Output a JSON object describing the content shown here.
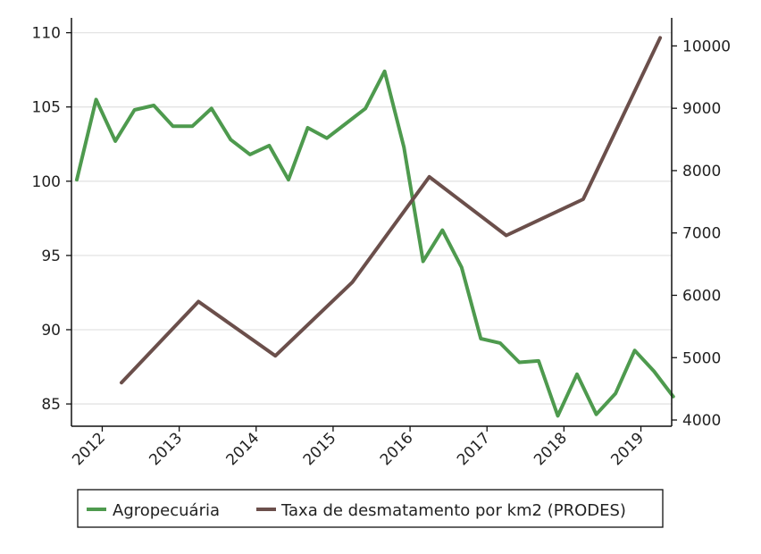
{
  "chart_data": {
    "type": "line",
    "title": "",
    "xlabel": "",
    "ylabel": "",
    "y2label": "",
    "grid": "horizontal",
    "legend_position": "bottom",
    "x_ticks": [
      "2012",
      "2013",
      "2014",
      "2015",
      "2016",
      "2017",
      "2018",
      "2019"
    ],
    "xlim": [
      2011.6,
      2019.4
    ],
    "ylim_left": [
      83.5,
      111
    ],
    "ylim_right": [
      3900,
      10450
    ],
    "y_ticks_left": [
      85,
      90,
      95,
      100,
      105,
      110
    ],
    "y_ticks_right": [
      4000,
      5000,
      6000,
      7000,
      8000,
      9000,
      10000
    ],
    "series": [
      {
        "name": "Agropecuária",
        "axis": "left",
        "color": "#4e9a4e",
        "points": [
          [
            2011.67,
            100.1
          ],
          [
            2011.92,
            105.5
          ],
          [
            2012.17,
            102.7
          ],
          [
            2012.42,
            104.8
          ],
          [
            2012.67,
            105.1
          ],
          [
            2012.92,
            103.7
          ],
          [
            2013.17,
            103.7
          ],
          [
            2013.42,
            104.9
          ],
          [
            2013.67,
            102.8
          ],
          [
            2013.92,
            101.8
          ],
          [
            2014.17,
            102.4
          ],
          [
            2014.42,
            100.1
          ],
          [
            2014.67,
            103.6
          ],
          [
            2014.92,
            102.9
          ],
          [
            2015.17,
            103.9
          ],
          [
            2015.42,
            104.9
          ],
          [
            2015.67,
            107.4
          ],
          [
            2015.92,
            102.3
          ],
          [
            2016.17,
            94.6
          ],
          [
            2016.42,
            96.7
          ],
          [
            2016.67,
            94.2
          ],
          [
            2016.92,
            89.4
          ],
          [
            2017.17,
            89.1
          ],
          [
            2017.42,
            87.8
          ],
          [
            2017.67,
            87.9
          ],
          [
            2017.92,
            84.2
          ],
          [
            2018.17,
            87.0
          ],
          [
            2018.42,
            84.3
          ],
          [
            2018.67,
            85.7
          ],
          [
            2018.92,
            88.6
          ],
          [
            2019.17,
            87.2
          ],
          [
            2019.42,
            85.5
          ]
        ]
      },
      {
        "name": "Taxa de desmatamento por km2 (PRODES)",
        "axis": "right",
        "color": "#6b4f4b",
        "points": [
          [
            2012.25,
            4600
          ],
          [
            2013.25,
            5900
          ],
          [
            2014.25,
            5030
          ],
          [
            2015.25,
            6210
          ],
          [
            2016.25,
            7900
          ],
          [
            2017.25,
            6960
          ],
          [
            2018.25,
            7540
          ],
          [
            2019.25,
            10130
          ]
        ]
      }
    ]
  }
}
